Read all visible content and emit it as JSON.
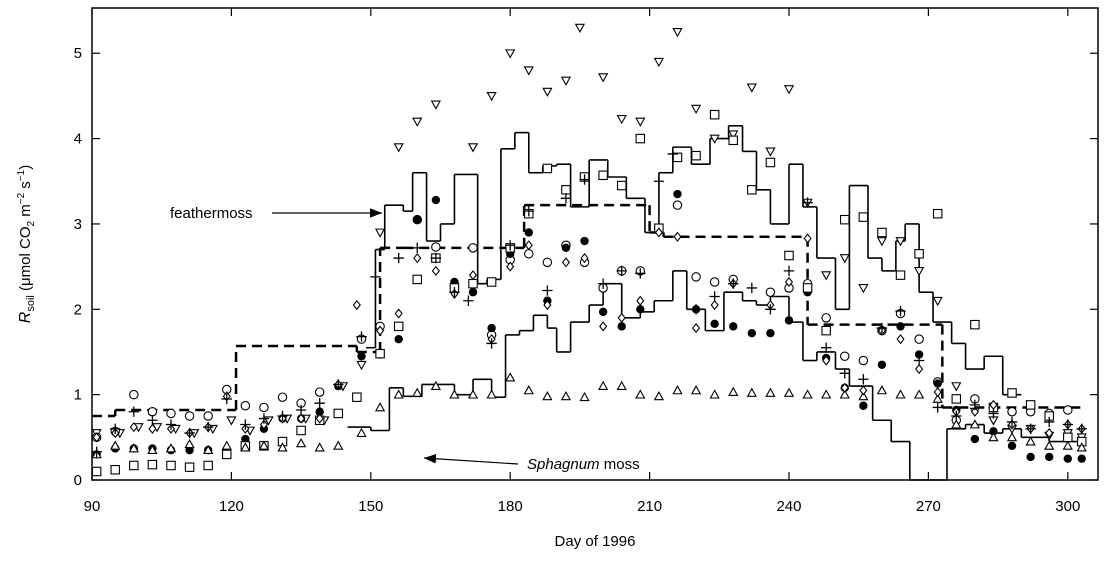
{
  "chart_data": {
    "type": "scatter",
    "x_label": "Day of 1996",
    "y_label_parts": [
      "R",
      "soil",
      " (μmol CO",
      "2",
      " m",
      "−2",
      " s",
      "−1",
      ")"
    ],
    "xlim": [
      90,
      306.5
    ],
    "ylim": [
      0,
      5.53
    ],
    "xticks": [
      90,
      120,
      150,
      180,
      210,
      240,
      270,
      300
    ],
    "yticks": [
      0,
      1,
      2,
      3,
      4,
      5
    ],
    "color": "#000000",
    "annotations": [
      {
        "text": "feathermoss"
      },
      {
        "text_parts": [
          "Sphagnum",
          " moss"
        ]
      }
    ],
    "step_lines": [
      {
        "style": "solid",
        "edges": [
          149,
          151,
          153,
          157,
          159,
          162,
          165,
          168,
          171,
          173,
          175,
          178,
          181,
          184,
          187,
          190,
          193,
          197,
          201,
          205,
          209,
          212,
          215,
          219,
          223,
          227,
          230,
          233,
          236,
          240,
          243,
          246,
          250,
          253,
          257,
          260,
          263,
          265,
          268,
          271,
          275,
          278,
          282,
          286,
          290
        ],
        "values": [
          1.55,
          2.7,
          3.22,
          3.15,
          3.6,
          2.8,
          3.0,
          3.58,
          3.58,
          2.3,
          2.35,
          3.88,
          4.07,
          3.6,
          3.68,
          3.7,
          3.2,
          3.75,
          3.55,
          3.3,
          2.9,
          3.6,
          3.9,
          3.7,
          4.0,
          4.15,
          3.85,
          3.4,
          3.0,
          3.7,
          3.2,
          2.6,
          2.0,
          3.45,
          2.6,
          2.45,
          2.8,
          3.0,
          2.2,
          1.85,
          1.6,
          1.3,
          1.45,
          1.0
        ]
      },
      {
        "style": "solid",
        "edges": [
          145,
          150,
          154,
          157,
          161,
          168,
          172,
          176,
          179,
          182,
          185,
          188,
          190,
          193,
          197,
          200,
          204,
          208,
          211,
          215,
          218,
          222,
          226,
          230,
          233,
          236,
          240,
          243,
          246,
          250,
          253,
          258,
          262,
          266,
          270,
          274,
          278,
          282,
          286,
          290,
          296,
          304
        ],
        "values": [
          0.62,
          0.58,
          1.08,
          0.98,
          1.12,
          1.0,
          1.18,
          0.97,
          1.7,
          1.75,
          1.93,
          1.78,
          1.5,
          1.85,
          2.05,
          2.3,
          1.9,
          1.97,
          2.1,
          2.45,
          2.0,
          1.75,
          2.2,
          2.1,
          2.05,
          2.15,
          1.85,
          1.4,
          1.5,
          1.3,
          1.1,
          0.7,
          0.45,
          0.0,
          0.0,
          0.6,
          0.65,
          0.55,
          0.6,
          0.5,
          0.45
        ]
      },
      {
        "style": "dashed",
        "edges": [
          90,
          95,
          121,
          147,
          152,
          157,
          183,
          210,
          213,
          244,
          273,
          304
        ],
        "values": [
          0.75,
          0.82,
          1.57,
          1.5,
          2.72,
          2.72,
          3.22,
          2.9,
          2.85,
          1.82,
          0.85
        ]
      }
    ],
    "series": [
      {
        "marker": "triangle-down",
        "x": [
          91,
          96,
          100,
          104,
          108,
          112,
          116,
          120,
          124,
          128,
          132,
          136,
          140,
          144,
          148,
          152,
          156,
          160,
          164,
          172,
          176,
          180,
          184,
          188,
          192,
          195,
          200,
          204,
          208,
          212,
          216,
          220,
          224,
          228,
          232,
          236,
          240,
          244,
          248,
          252,
          256,
          260,
          264,
          268,
          272,
          276,
          280,
          284,
          288,
          292,
          296,
          300,
          303
        ],
        "values": [
          0.55,
          0.55,
          0.62,
          0.62,
          0.6,
          0.55,
          0.6,
          0.7,
          0.58,
          0.7,
          0.72,
          0.72,
          0.7,
          1.1,
          1.35,
          2.9,
          3.9,
          4.2,
          4.4,
          3.9,
          4.5,
          5.0,
          4.8,
          4.55,
          4.68,
          5.3,
          4.72,
          4.23,
          4.2,
          4.9,
          5.25,
          4.35,
          4.0,
          4.05,
          4.6,
          3.85,
          4.58,
          3.25,
          2.4,
          2.6,
          2.25,
          2.8,
          2.8,
          2.45,
          2.1,
          1.1,
          0.8,
          0.7,
          0.6,
          0.6,
          0.52,
          0.55,
          0.5
        ]
      },
      {
        "marker": "circle-open",
        "x": [
          91,
          95,
          99,
          103,
          107,
          111,
          115,
          119,
          123,
          127,
          131,
          135,
          139,
          148,
          152,
          160,
          164,
          172,
          176,
          180,
          184,
          188,
          192,
          196,
          200,
          204,
          208,
          212,
          216,
          220,
          224,
          228,
          236,
          240,
          244,
          248,
          252,
          256,
          260,
          264,
          268,
          272,
          276,
          280,
          284,
          288,
          292,
          296,
          300
        ],
        "values": [
          0.5,
          0.57,
          1.0,
          0.8,
          0.78,
          0.75,
          0.75,
          1.06,
          0.87,
          0.85,
          0.97,
          0.9,
          1.03,
          1.65,
          1.8,
          3.05,
          2.73,
          2.72,
          1.7,
          2.58,
          2.65,
          2.55,
          2.75,
          2.55,
          2.25,
          2.45,
          2.45,
          2.95,
          3.22,
          2.38,
          2.32,
          2.35,
          2.2,
          2.25,
          2.3,
          1.9,
          1.45,
          1.4,
          1.75,
          1.95,
          1.65,
          1.15,
          0.7,
          0.95,
          0.85,
          0.8,
          0.8,
          0.78,
          0.82
        ]
      },
      {
        "marker": "circle-filled",
        "x": [
          91,
          95,
          99,
          103,
          107,
          111,
          115,
          119,
          123,
          127,
          131,
          135,
          139,
          143,
          148,
          152,
          156,
          160,
          164,
          168,
          172,
          176,
          180,
          184,
          188,
          192,
          196,
          200,
          204,
          208,
          212,
          216,
          220,
          224,
          228,
          232,
          236,
          240,
          244,
          248,
          252,
          256,
          260,
          264,
          268,
          272,
          276,
          280,
          284,
          288,
          292,
          296,
          300,
          303
        ],
        "values": [
          0.3,
          0.37,
          0.37,
          0.37,
          0.35,
          0.35,
          0.35,
          0.35,
          0.48,
          0.6,
          0.72,
          0.72,
          0.8,
          1.1,
          1.45,
          1.47,
          1.65,
          3.05,
          3.28,
          2.32,
          2.2,
          1.78,
          2.65,
          2.9,
          2.1,
          2.72,
          2.8,
          1.97,
          1.8,
          2.0,
          2.95,
          3.35,
          2.0,
          1.83,
          1.8,
          1.72,
          1.72,
          1.87,
          2.2,
          1.43,
          1.08,
          0.87,
          1.35,
          1.8,
          1.47,
          1.13,
          0.82,
          0.48,
          0.57,
          0.4,
          0.27,
          0.27,
          0.25,
          0.25
        ]
      },
      {
        "marker": "square",
        "x": [
          91,
          95,
          99,
          103,
          107,
          111,
          115,
          119,
          123,
          127,
          131,
          135,
          139,
          143,
          147,
          152,
          156,
          160,
          164,
          168,
          172,
          176,
          180,
          184,
          188,
          192,
          196,
          200,
          204,
          208,
          212,
          216,
          220,
          224,
          228,
          232,
          236,
          240,
          244,
          248,
          252,
          256,
          260,
          264,
          268,
          272,
          276,
          280,
          284,
          288,
          292,
          296,
          300,
          303
        ],
        "values": [
          0.1,
          0.12,
          0.17,
          0.18,
          0.17,
          0.15,
          0.17,
          0.3,
          0.4,
          0.4,
          0.45,
          0.58,
          0.7,
          0.78,
          0.97,
          1.48,
          1.8,
          2.35,
          2.6,
          2.25,
          2.3,
          2.32,
          2.72,
          3.12,
          3.65,
          3.4,
          3.55,
          3.57,
          3.45,
          4.0,
          2.95,
          3.78,
          3.8,
          4.28,
          3.98,
          3.4,
          3.72,
          2.63,
          2.25,
          1.75,
          3.05,
          3.08,
          2.9,
          2.4,
          2.65,
          3.12,
          0.95,
          1.82,
          0.85,
          1.02,
          0.88,
          0.75,
          0.5,
          0.45
        ]
      },
      {
        "marker": "triangle-up",
        "x": [
          91,
          95,
          99,
          103,
          107,
          111,
          115,
          119,
          123,
          127,
          131,
          135,
          139,
          143,
          148,
          152,
          156,
          160,
          164,
          168,
          172,
          176,
          180,
          184,
          188,
          192,
          196,
          200,
          204,
          208,
          212,
          216,
          220,
          224,
          228,
          232,
          236,
          240,
          244,
          248,
          252,
          256,
          260,
          264,
          268,
          272,
          276,
          280,
          284,
          288,
          292,
          296,
          300,
          303
        ],
        "values": [
          0.3,
          0.4,
          0.37,
          0.35,
          0.37,
          0.42,
          0.35,
          0.4,
          0.38,
          0.4,
          0.38,
          0.43,
          0.38,
          0.4,
          0.55,
          0.85,
          1.0,
          1.02,
          1.1,
          1.0,
          1.0,
          1.0,
          1.2,
          1.05,
          0.98,
          0.98,
          0.97,
          1.1,
          1.1,
          1.0,
          0.98,
          1.05,
          1.05,
          1.0,
          1.03,
          1.02,
          1.02,
          1.02,
          1.0,
          1.0,
          1.0,
          0.98,
          1.05,
          1.0,
          1.0,
          0.95,
          0.65,
          0.65,
          0.5,
          0.5,
          0.45,
          0.4,
          0.4,
          0.38
        ]
      },
      {
        "marker": "diamond",
        "x": [
          91,
          95,
          99,
          103,
          107,
          111,
          115,
          119,
          123,
          127,
          131,
          135,
          139,
          143,
          147,
          152,
          156,
          160,
          164,
          168,
          172,
          176,
          180,
          184,
          188,
          192,
          196,
          200,
          204,
          208,
          212,
          216,
          220,
          224,
          228,
          236,
          240,
          244,
          248,
          252,
          256,
          260,
          264,
          268,
          272,
          276,
          280,
          284,
          288,
          292,
          296,
          300,
          303
        ],
        "values": [
          0.5,
          0.55,
          0.62,
          0.6,
          0.6,
          0.55,
          0.62,
          0.98,
          0.6,
          0.65,
          0.72,
          0.72,
          0.72,
          1.12,
          2.05,
          1.75,
          1.95,
          2.6,
          2.45,
          2.18,
          2.4,
          1.65,
          2.5,
          2.75,
          2.05,
          2.55,
          2.6,
          1.8,
          1.9,
          2.1,
          2.9,
          2.85,
          1.78,
          2.05,
          2.3,
          2.05,
          2.32,
          2.83,
          1.4,
          1.08,
          1.05,
          1.75,
          1.65,
          1.3,
          1.03,
          0.8,
          0.8,
          0.88,
          0.65,
          0.6,
          0.55,
          0.65,
          0.6
        ]
      },
      {
        "marker": "plus",
        "x": [
          91,
          95,
          99,
          103,
          107,
          111,
          115,
          119,
          123,
          127,
          131,
          135,
          139,
          143,
          148,
          151,
          156,
          160,
          164,
          168,
          171,
          176,
          180,
          184,
          188,
          192,
          196,
          200,
          204,
          208,
          212,
          215,
          220,
          224,
          228,
          232,
          236,
          240,
          244,
          248,
          252,
          256,
          260,
          264,
          268,
          272,
          276,
          280,
          284,
          288,
          292,
          296,
          300,
          303
        ],
        "values": [
          0.33,
          0.6,
          0.8,
          0.7,
          0.65,
          0.55,
          0.62,
          0.95,
          0.65,
          0.72,
          0.75,
          0.82,
          0.9,
          1.12,
          1.68,
          2.38,
          2.6,
          2.72,
          2.6,
          2.2,
          2.1,
          1.6,
          2.75,
          3.15,
          2.22,
          3.3,
          3.52,
          2.3,
          2.45,
          2.42,
          3.5,
          3.82,
          2.0,
          2.15,
          2.3,
          2.25,
          2.0,
          2.45,
          3.25,
          1.55,
          1.25,
          1.18,
          1.78,
          1.98,
          1.4,
          0.85,
          0.75,
          0.88,
          0.78,
          0.68,
          0.6,
          0.68,
          0.65,
          0.6
        ]
      }
    ]
  }
}
